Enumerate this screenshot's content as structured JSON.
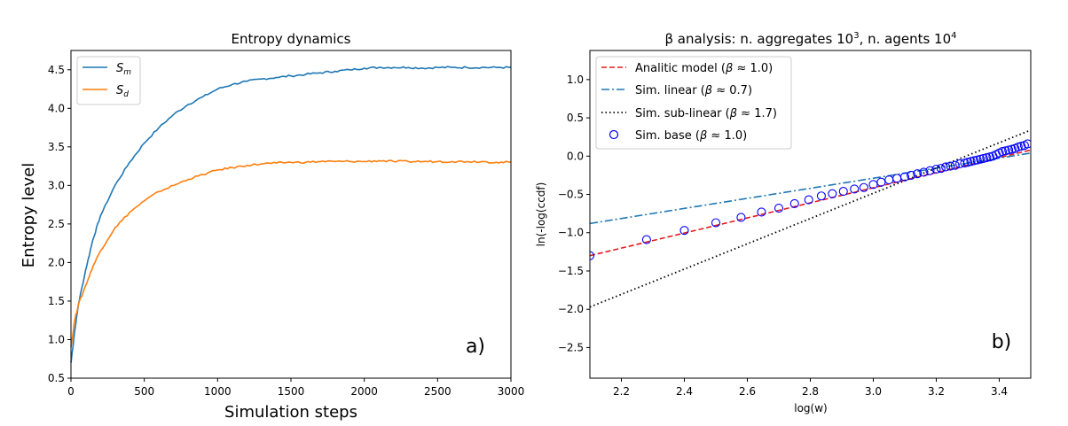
{
  "chart_data": [
    {
      "type": "line",
      "title": "Entropy dynamics",
      "xlabel": "Simulation steps",
      "ylabel": "Entropy level",
      "xlim": [
        0,
        3000
      ],
      "ylim": [
        0.5,
        4.75
      ],
      "xticks": [
        "0",
        "500",
        "1000",
        "1500",
        "2000",
        "2500",
        "3000"
      ],
      "yticks": [
        "0.5",
        "1.0",
        "1.5",
        "2.0",
        "2.5",
        "3.0",
        "3.5",
        "4.0",
        "4.5"
      ],
      "legend_position": "top-left",
      "annotation": "a)",
      "series": [
        {
          "name": "S",
          "sub": "m",
          "color": "#1f77b4",
          "x": [
            0,
            25,
            50,
            100,
            150,
            200,
            300,
            400,
            500,
            600,
            700,
            800,
            900,
            1000,
            1100,
            1200,
            1300,
            1400,
            1500,
            1600,
            1700,
            1800,
            1900,
            2000,
            2100,
            2200,
            2300,
            2400,
            2500,
            2600,
            2700,
            2800,
            2900,
            3000
          ],
          "values": [
            0.7,
            1.1,
            1.45,
            1.9,
            2.3,
            2.6,
            3.0,
            3.3,
            3.55,
            3.75,
            3.92,
            4.05,
            4.15,
            4.25,
            4.31,
            4.35,
            4.38,
            4.4,
            4.42,
            4.44,
            4.46,
            4.48,
            4.5,
            4.52,
            4.53,
            4.53,
            4.53,
            4.52,
            4.53,
            4.53,
            4.53,
            4.53,
            4.53,
            4.53
          ]
        },
        {
          "name": "S",
          "sub": "d",
          "color": "#ff7f0e",
          "x": [
            0,
            25,
            50,
            100,
            150,
            200,
            300,
            400,
            500,
            600,
            700,
            800,
            900,
            1000,
            1100,
            1200,
            1300,
            1400,
            1500,
            1600,
            1700,
            1800,
            1900,
            2000,
            2100,
            2200,
            2300,
            2400,
            2500,
            2600,
            2700,
            2800,
            2900,
            3000
          ],
          "values": [
            0.9,
            1.25,
            1.45,
            1.7,
            1.95,
            2.15,
            2.45,
            2.65,
            2.8,
            2.92,
            3.0,
            3.08,
            3.14,
            3.2,
            3.23,
            3.26,
            3.28,
            3.29,
            3.3,
            3.3,
            3.31,
            3.31,
            3.31,
            3.31,
            3.32,
            3.31,
            3.31,
            3.31,
            3.31,
            3.31,
            3.31,
            3.31,
            3.3,
            3.3
          ]
        }
      ]
    },
    {
      "type": "scatter",
      "title_prefix": "β analysis: n. aggregates 10",
      "title_exp1": "3",
      "title_mid": ", n. agents 10",
      "title_exp2": "4",
      "xlabel": "log(w)",
      "ylabel": "ln(-log(ccdf)",
      "xlim": [
        2.1,
        3.5
      ],
      "ylim": [
        -2.9,
        1.38
      ],
      "xticks": [
        "2.2",
        "2.4",
        "2.6",
        "2.8",
        "3.0",
        "3.2",
        "3.4"
      ],
      "yticks": [
        "-2.5",
        "-2.0",
        "-1.5",
        "-1.0",
        "-0.5",
        "0.0",
        "0.5",
        "1.0"
      ],
      "legend_position": "top-left",
      "annotation": "b)",
      "lines": [
        {
          "name": "Analitic model",
          "beta": "1.0",
          "color": "#e41a1c",
          "style": "dashed",
          "x": [
            2.1,
            3.5
          ],
          "values": [
            -1.3,
            0.08
          ]
        },
        {
          "name": "Sim. linear",
          "beta": "0.7",
          "color": "#1f77b4",
          "style": "dashdot",
          "x": [
            2.1,
            3.5
          ],
          "values": [
            -0.88,
            0.04
          ]
        },
        {
          "name": "Sim. sub-linear",
          "beta": "1.7",
          "color": "#000000",
          "style": "dotted",
          "x": [
            2.1,
            3.5
          ],
          "values": [
            -1.97,
            0.34
          ]
        }
      ],
      "points": {
        "name": "Sim. base",
        "beta": "1.0",
        "color": "#0000ff",
        "x": [
          2.1,
          2.28,
          2.4,
          2.5,
          2.58,
          2.645,
          2.7,
          2.75,
          2.795,
          2.835,
          2.87,
          2.905,
          2.94,
          2.97,
          3.0,
          3.025,
          3.05,
          3.075,
          3.1,
          3.12,
          3.14,
          3.16,
          3.18,
          3.2,
          3.215,
          3.23,
          3.245,
          3.26,
          3.275,
          3.29,
          3.3,
          3.31,
          3.32,
          3.33,
          3.34,
          3.35,
          3.36,
          3.37,
          3.38,
          3.39,
          3.4,
          3.41,
          3.42,
          3.43,
          3.44,
          3.45,
          3.46,
          3.47,
          3.48,
          3.49
        ],
        "values": [
          -1.3,
          -1.09,
          -0.97,
          -0.87,
          -0.8,
          -0.73,
          -0.68,
          -0.62,
          -0.57,
          -0.52,
          -0.49,
          -0.46,
          -0.43,
          -0.41,
          -0.37,
          -0.34,
          -0.31,
          -0.29,
          -0.27,
          -0.25,
          -0.23,
          -0.21,
          -0.19,
          -0.17,
          -0.16,
          -0.14,
          -0.13,
          -0.12,
          -0.1,
          -0.09,
          -0.08,
          -0.07,
          -0.06,
          -0.05,
          -0.04,
          -0.03,
          -0.02,
          -0.01,
          0.0,
          0.02,
          0.04,
          0.06,
          0.07,
          0.08,
          0.09,
          0.1,
          0.12,
          0.13,
          0.14,
          0.16
        ]
      }
    }
  ]
}
